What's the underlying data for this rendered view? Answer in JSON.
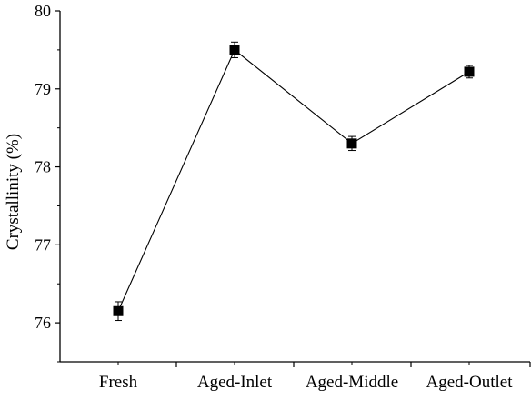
{
  "chart_data": {
    "type": "line",
    "title": "",
    "xlabel": "",
    "ylabel": "Crystallinity (%)",
    "categories": [
      "Fresh",
      "Aged-Inlet",
      "Aged-Middle",
      "Aged-Outlet"
    ],
    "series": [
      {
        "values": [
          76.15,
          79.5,
          78.3,
          79.22
        ],
        "errors": [
          0.12,
          0.1,
          0.09,
          0.08
        ],
        "marker": "square",
        "color": "#000000"
      }
    ],
    "ylim": [
      75.5,
      80
    ],
    "yticks": [
      "76",
      "77",
      "78",
      "79",
      "80"
    ],
    "grid": false,
    "legend": "none"
  }
}
